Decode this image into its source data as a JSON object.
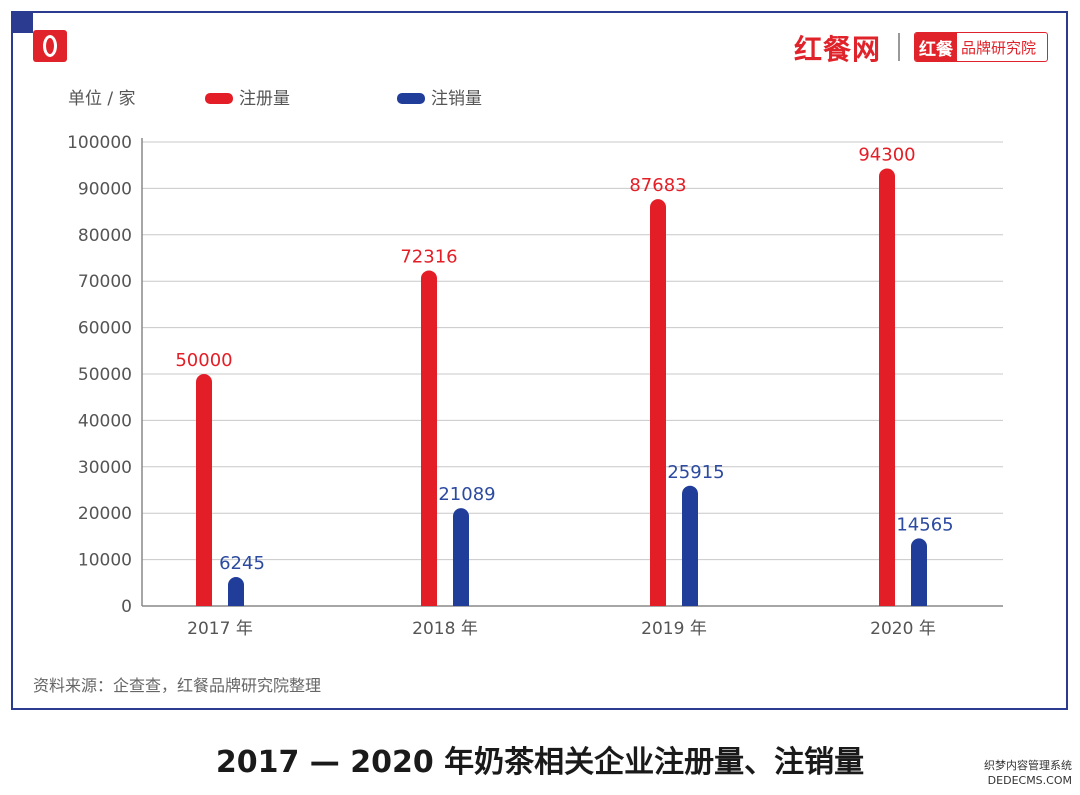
{
  "brand": {
    "main": "红餐网",
    "badge_left": "红餐",
    "badge_right": "品牌研究院"
  },
  "unit_label": "单位 / 家",
  "source": "资料来源：企查查，红餐品牌研究院整理",
  "caption": "2017 — 2020 年奶茶相关企业注册量、注销量",
  "corner_watermark": {
    "line1": "织梦内容管理系统",
    "line2": "DEDECMS.COM"
  },
  "chart_data": {
    "type": "bar",
    "categories": [
      "2017 年",
      "2018 年",
      "2019 年",
      "2020 年"
    ],
    "series": [
      {
        "name": "注册量",
        "color": "#e41e26",
        "values": [
          50000,
          72316,
          87683,
          94300
        ]
      },
      {
        "name": "注销量",
        "color": "#1f3d99",
        "values": [
          6245,
          21089,
          25915,
          14565
        ]
      }
    ],
    "ylim": [
      0,
      100000
    ],
    "yticks": [
      0,
      10000,
      20000,
      30000,
      40000,
      50000,
      60000,
      70000,
      80000,
      90000,
      100000
    ],
    "grid": true,
    "legend": "top-left"
  }
}
